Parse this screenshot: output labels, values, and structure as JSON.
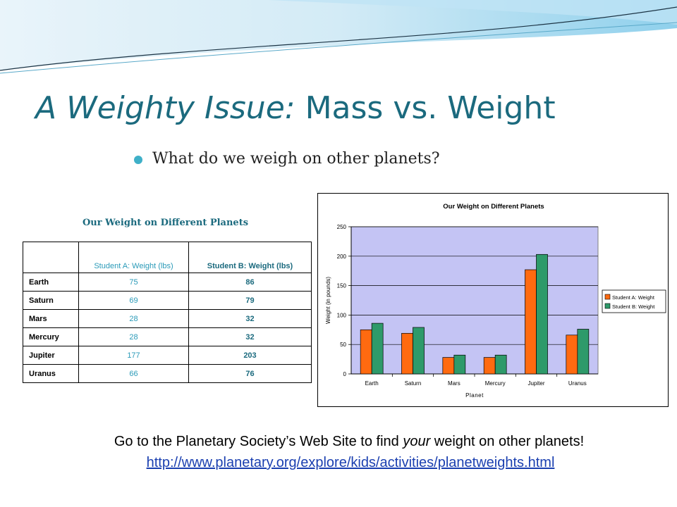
{
  "slide": {
    "title_italic": "A Weighty Issue:",
    "title_rest": " Mass vs. Weight",
    "bullet": "What do we weigh on other planets?"
  },
  "table": {
    "title": "Our Weight on Different Planets",
    "headers": [
      "",
      "Student A: Weight (lbs)",
      "Student B: Weight (lbs)"
    ],
    "rows": [
      [
        "Earth",
        "75",
        "86"
      ],
      [
        "Saturn",
        "69",
        "79"
      ],
      [
        "Mars",
        "28",
        "32"
      ],
      [
        "Mercury",
        "28",
        "32"
      ],
      [
        "Jupiter",
        "177",
        "203"
      ],
      [
        "Uranus",
        "66",
        "76"
      ]
    ]
  },
  "chart_data": {
    "type": "bar",
    "title": "Our Weight on Different Planets",
    "xlabel": "Planet",
    "ylabel": "Weight (in pounds)",
    "categories": [
      "Earth",
      "Saturn",
      "Mars",
      "Mercury",
      "Jupiter",
      "Uranus"
    ],
    "series": [
      {
        "name": "Student A: Weight",
        "values": [
          75,
          69,
          28,
          28,
          177,
          66
        ],
        "color": "#ff6a10"
      },
      {
        "name": "Student B: Weight",
        "values": [
          86,
          79,
          32,
          32,
          203,
          76
        ],
        "color": "#2e9a6a"
      }
    ],
    "ylim": [
      0,
      250
    ],
    "yticks": [
      0,
      50,
      100,
      150,
      200,
      250
    ],
    "grid": true,
    "legend": "right",
    "plot_background": "#c4c4f4"
  },
  "footer": {
    "text_before": "Go to the Planetary Society’s Web Site to find ",
    "text_em": "your",
    "text_after": " weight on other planets!",
    "url": "http://www.planetary.org/explore/kids/activities/planetweights.html"
  },
  "colors": {
    "title": "#1b6a7e",
    "bullet": "#3fb0c8",
    "link": "#1a3fb0"
  }
}
